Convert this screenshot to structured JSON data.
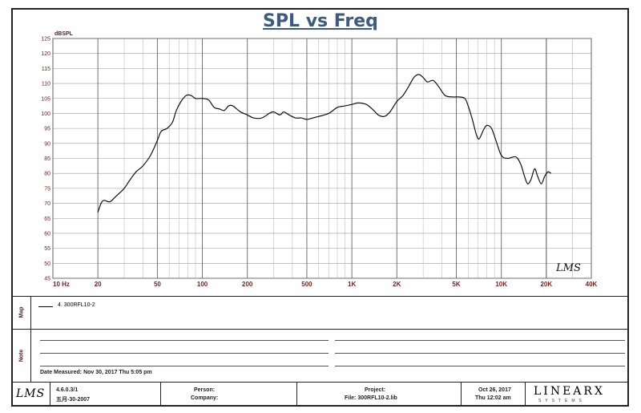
{
  "chart_data": {
    "type": "line",
    "title": "SPL vs Freq",
    "ylabel": "dBSPL",
    "xscale": "log",
    "xlim": [
      10,
      40000
    ],
    "ylim": [
      45,
      125
    ],
    "grid": true,
    "y_ticks": [
      "45",
      "50",
      "55",
      "60",
      "65",
      "70",
      "75",
      "80",
      "85",
      "90",
      "95",
      "100",
      "105",
      "110",
      "115",
      "120",
      "125"
    ],
    "x_ticks": [
      {
        "value": 10,
        "label": "10 Hz"
      },
      {
        "value": 20,
        "label": "20"
      },
      {
        "value": 50,
        "label": "50"
      },
      {
        "value": 100,
        "label": "100"
      },
      {
        "value": 200,
        "label": "200"
      },
      {
        "value": 500,
        "label": "500"
      },
      {
        "value": 1000,
        "label": "1K"
      },
      {
        "value": 2000,
        "label": "2K"
      },
      {
        "value": 5000,
        "label": "5K"
      },
      {
        "value": 10000,
        "label": "10K"
      },
      {
        "value": 20000,
        "label": "20K"
      },
      {
        "value": 40000,
        "label": "40K"
      }
    ],
    "series": [
      {
        "name": "4. 300RFL10-2",
        "points": [
          [
            20,
            67
          ],
          [
            21,
            70
          ],
          [
            22,
            71
          ],
          [
            24,
            70.5
          ],
          [
            26,
            72
          ],
          [
            28,
            73.5
          ],
          [
            30,
            75
          ],
          [
            33,
            78
          ],
          [
            36,
            80.5
          ],
          [
            40,
            82.5
          ],
          [
            45,
            86
          ],
          [
            50,
            91
          ],
          [
            53,
            94
          ],
          [
            58,
            95
          ],
          [
            63,
            97
          ],
          [
            67,
            101
          ],
          [
            72,
            104
          ],
          [
            78,
            106
          ],
          [
            84,
            106
          ],
          [
            90,
            105
          ],
          [
            100,
            105
          ],
          [
            110,
            104.5
          ],
          [
            120,
            102
          ],
          [
            130,
            101.5
          ],
          [
            140,
            101
          ],
          [
            150,
            102.5
          ],
          [
            160,
            102.5
          ],
          [
            180,
            100.5
          ],
          [
            200,
            99.5
          ],
          [
            220,
            98.5
          ],
          [
            250,
            98.5
          ],
          [
            280,
            100
          ],
          [
            300,
            100.5
          ],
          [
            330,
            99.5
          ],
          [
            350,
            100.5
          ],
          [
            380,
            99.5
          ],
          [
            420,
            98.5
          ],
          [
            460,
            98.5
          ],
          [
            500,
            98
          ],
          [
            550,
            98.5
          ],
          [
            600,
            99
          ],
          [
            700,
            100
          ],
          [
            800,
            102
          ],
          [
            900,
            102.5
          ],
          [
            1000,
            103
          ],
          [
            1100,
            103.5
          ],
          [
            1250,
            103
          ],
          [
            1400,
            101
          ],
          [
            1500,
            99.5
          ],
          [
            1650,
            99
          ],
          [
            1800,
            100.5
          ],
          [
            2000,
            104
          ],
          [
            2200,
            106
          ],
          [
            2400,
            109
          ],
          [
            2600,
            112
          ],
          [
            2800,
            113
          ],
          [
            3000,
            112
          ],
          [
            3200,
            110.5
          ],
          [
            3500,
            111
          ],
          [
            3800,
            109
          ],
          [
            4200,
            106
          ],
          [
            4700,
            105.5
          ],
          [
            5200,
            105.5
          ],
          [
            5700,
            105
          ],
          [
            6000,
            102.5
          ],
          [
            6400,
            98
          ],
          [
            6800,
            93
          ],
          [
            7100,
            91.5
          ],
          [
            7600,
            94.5
          ],
          [
            8000,
            96
          ],
          [
            8600,
            95
          ],
          [
            9200,
            91
          ],
          [
            10000,
            86
          ],
          [
            11000,
            85
          ],
          [
            12500,
            85.5
          ],
          [
            13500,
            83
          ],
          [
            14300,
            79
          ],
          [
            15000,
            76.5
          ],
          [
            15800,
            78
          ],
          [
            16700,
            81.5
          ],
          [
            17500,
            79
          ],
          [
            18500,
            76.5
          ],
          [
            19500,
            79
          ],
          [
            20500,
            80.5
          ],
          [
            21500,
            80
          ]
        ]
      }
    ]
  },
  "watermark": "LMS",
  "legend_section": {
    "label": "Map",
    "entry": "4. 300RFL10-2"
  },
  "notes_section": {
    "label": "Note",
    "date_measured": "Date Measured: Nov 30, 2017  Thu  5:05 pm"
  },
  "footer": {
    "logo": "LMS",
    "version": "4.6.0.3/1",
    "version_date": "五月-30-2007",
    "person_label": "Person:",
    "company_label": "Company:",
    "project_label": "Project:",
    "file_label": "File: 300RFL10-2.lib",
    "date": "Oct 26, 2017",
    "time": "Thu 12:02 am",
    "brand": "LINEARX",
    "brand_sub": "SYSTEMS"
  }
}
